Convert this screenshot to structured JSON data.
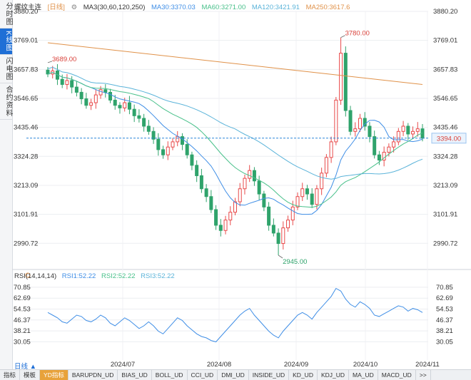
{
  "sidebar": {
    "tabs": [
      {
        "label": "分时图",
        "active": false
      },
      {
        "label": "K线图",
        "active": true
      },
      {
        "label": "闪电图",
        "active": false
      },
      {
        "label": "合约资料",
        "active": false
      }
    ]
  },
  "header": {
    "instrument": "螺纹主连",
    "period_tag": "[日线]",
    "gear_icon": "gear-icon",
    "ma_group": "MA3(30,60,120,250)",
    "ma30": "MA30:3370.03",
    "ma60": "MA60:3271.00",
    "ma120": "MA120:3421.91",
    "ma250": "MA250:3617.6"
  },
  "price_axis": {
    "ticks": [
      3880.2,
      3769.01,
      3657.83,
      3546.65,
      3435.46,
      3324.28,
      3213.09,
      3101.91,
      2990.72
    ],
    "tick_labels": [
      "3880.20",
      "3769.01",
      "3657.83",
      "3546.65",
      "3435.46",
      "3324.28",
      "3213.09",
      "3101.91",
      "2990.72"
    ],
    "current_price": 3394.0,
    "current_price_label": "3394.00"
  },
  "annotations": {
    "high_label": "3780.00",
    "high_value": 3780.0,
    "left_high_label": "3689.00",
    "left_high_value": 3689.0,
    "low_label": "2945.00",
    "low_value": 2945.0
  },
  "rsi": {
    "title": "RSI(14,14,14)",
    "rsi1": "RSI1:52.22",
    "rsi2": "RSI2:52.22",
    "rsi3": "RSI3:52.22",
    "tick_labels": [
      "70.85",
      "62.69",
      "54.53",
      "46.37",
      "38.21",
      "30.05"
    ],
    "ticks": [
      70.85,
      62.69,
      54.53,
      46.37,
      38.21,
      30.05
    ]
  },
  "x_axis": {
    "labels": [
      "2024/07",
      "2024/08",
      "2024/09",
      "2024/10",
      "2024/11"
    ]
  },
  "period_label": "日线 ▲",
  "bottom_tabs": [
    {
      "label": "指标",
      "active": false
    },
    {
      "label": "模板",
      "active": false
    },
    {
      "label": "YD指标",
      "active": true
    },
    {
      "label": "BARUPDN_UD",
      "active": false
    },
    {
      "label": "BIAS_UD",
      "active": false
    },
    {
      "label": "BOLL_UD",
      "active": false
    },
    {
      "label": "CCI_UD",
      "active": false
    },
    {
      "label": "DMI_UD",
      "active": false
    },
    {
      "label": "INSIDE_UD",
      "active": false
    },
    {
      "label": "KD_UD",
      "active": false
    },
    {
      "label": "KDJ_UD",
      "active": false
    },
    {
      "label": "MA_UD",
      "active": false
    },
    {
      "label": "MACD_UD",
      "active": false
    },
    {
      "label": ">>",
      "active": false
    }
  ],
  "colors": {
    "up": "#e84a4a",
    "down": "#2fa36b",
    "ma30": "#3f8ee6",
    "ma60": "#48c08a",
    "ma120": "#5ab3d9",
    "ma250": "#e0924a",
    "rsi": "#3f8ee6",
    "current_line": "#2b86d8"
  },
  "chart_data": {
    "type": "candlestick",
    "period": "daily",
    "x_labels": [
      "2024/07",
      "2024/08",
      "2024/09",
      "2024/10",
      "2024/11"
    ],
    "ylim": [
      2945.0,
      3880.2
    ],
    "candles_approx_close": [
      3640,
      3652,
      3620,
      3600,
      3615,
      3590,
      3570,
      3545,
      3520,
      3530,
      3560,
      3580,
      3570,
      3540,
      3520,
      3510,
      3530,
      3505,
      3480,
      3470,
      3440,
      3420,
      3390,
      3350,
      3330,
      3360,
      3380,
      3400,
      3370,
      3330,
      3290,
      3250,
      3200,
      3170,
      3120,
      3060,
      3040,
      3080,
      3110,
      3150,
      3200,
      3240,
      3270,
      3230,
      3180,
      3130,
      3060,
      3030,
      2990,
      3050,
      3080,
      3130,
      3170,
      3200,
      3180,
      3140,
      3200,
      3260,
      3320,
      3380,
      3540,
      3720,
      3500,
      3420,
      3430,
      3470,
      3440,
      3400,
      3330,
      3310,
      3340,
      3360,
      3380,
      3420,
      3440,
      3410,
      3420,
      3430,
      3394
    ],
    "rsi_approx": [
      52,
      50,
      48,
      45,
      44,
      47,
      50,
      49,
      46,
      45,
      47,
      50,
      48,
      44,
      42,
      45,
      48,
      46,
      43,
      40,
      42,
      45,
      42,
      38,
      36,
      40,
      44,
      48,
      46,
      42,
      39,
      36,
      34,
      33,
      31,
      30,
      34,
      38,
      42,
      46,
      50,
      53,
      55,
      50,
      46,
      42,
      38,
      35,
      33,
      38,
      42,
      46,
      50,
      52,
      50,
      47,
      52,
      56,
      60,
      64,
      70,
      68,
      62,
      58,
      56,
      60,
      58,
      55,
      50,
      49,
      51,
      53,
      55,
      57,
      56,
      53,
      55,
      54,
      52
    ]
  }
}
